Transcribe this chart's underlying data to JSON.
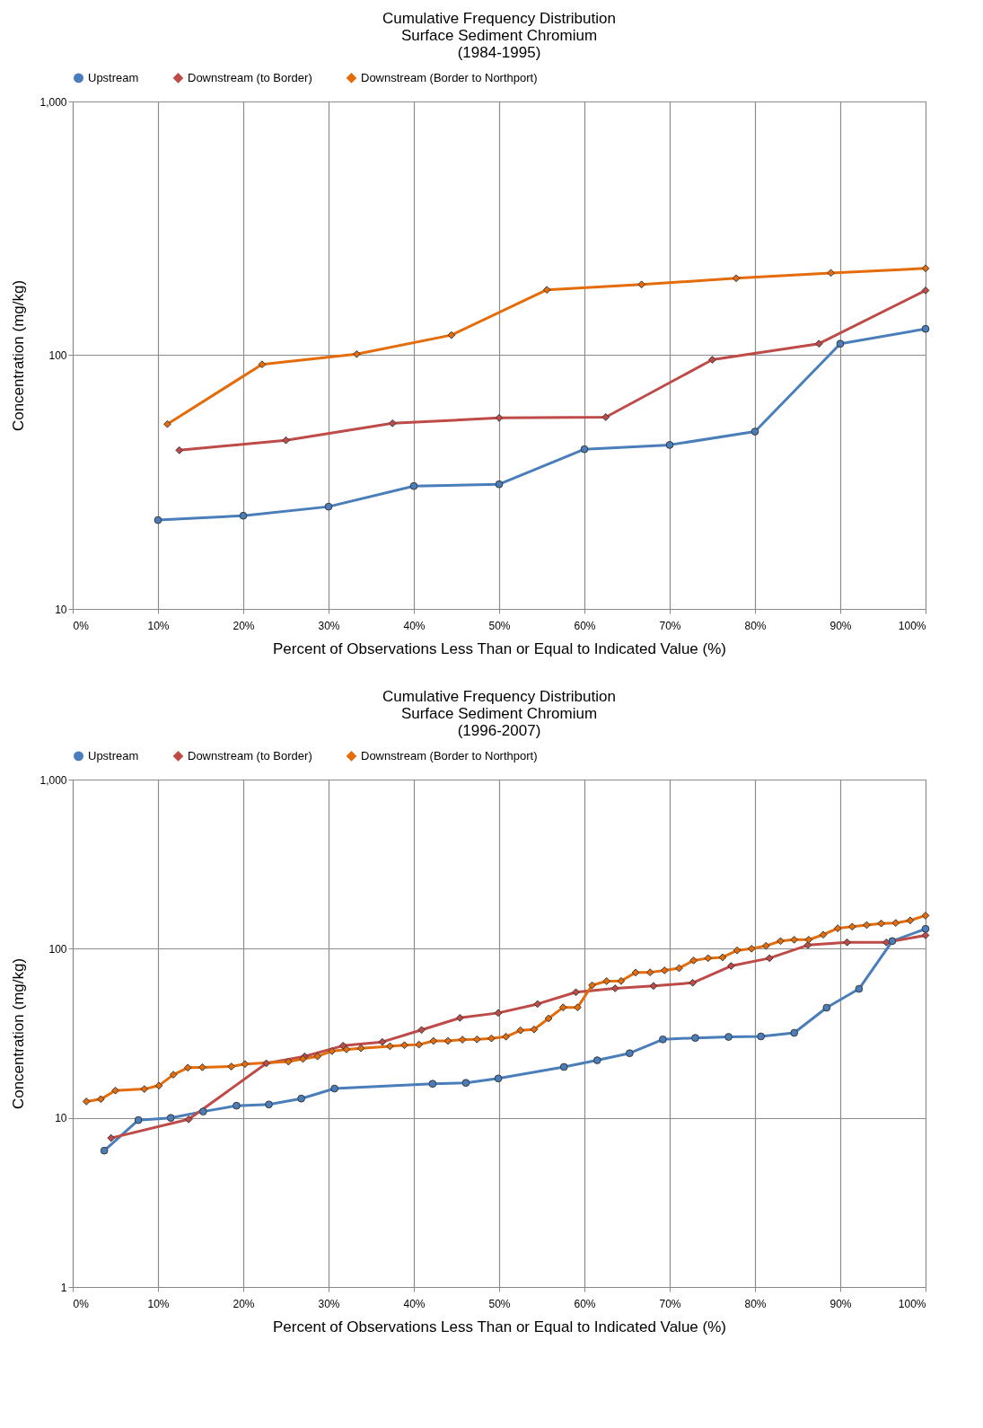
{
  "chart_data": [
    {
      "type": "line",
      "title": "Cumulative Frequency Distribution\nSurface Sediment Chromium\n(1984-1995)",
      "xlabel": "Percent of Observations Less Than or Equal to Indicated Value (%)",
      "ylabel": "Concentration (mg/kg)",
      "log": "y",
      "grid": true,
      "legend": "top",
      "xlim": [
        0,
        100
      ],
      "xticks": [
        {
          "value": 0,
          "label": "0%"
        },
        {
          "value": 10,
          "label": "10%"
        },
        {
          "value": 20,
          "label": "20%"
        },
        {
          "value": 30,
          "label": "30%"
        },
        {
          "value": 40,
          "label": "40%"
        },
        {
          "value": 50,
          "label": "50%"
        },
        {
          "value": 60,
          "label": "60%"
        },
        {
          "value": 70,
          "label": "70%"
        },
        {
          "value": 80,
          "label": "80%"
        },
        {
          "value": 90,
          "label": "90%"
        },
        {
          "value": 100,
          "label": "100%"
        }
      ],
      "ylim": [
        10,
        1000
      ],
      "yticks": [
        10,
        100,
        {
          "value": 1000,
          "label": "1,000"
        }
      ],
      "series": [
        {
          "name": "Upstream",
          "color": "#4a7ebb",
          "marker": "circle",
          "x": [
            10,
            20,
            30,
            40,
            50,
            60,
            70,
            80,
            90,
            100
          ],
          "values": [
            22.4,
            23.3,
            25.3,
            30.5,
            31,
            42.6,
            44.3,
            50,
            111,
            127
          ]
        },
        {
          "name": "Downstream (to Border)",
          "color": "#be4b48",
          "marker": "diamond",
          "x": [
            12.5,
            25,
            37.5,
            50,
            62.5,
            75,
            87.5,
            100
          ],
          "values": [
            42.2,
            46.2,
            53.9,
            56.6,
            57,
            96,
            111,
            180
          ]
        },
        {
          "name": "Downstream (Border to Northport)",
          "color": "#e46c0a",
          "marker": "diamond",
          "x": [
            11.1,
            22.2,
            33.3,
            44.4,
            55.6,
            66.7,
            77.8,
            88.9,
            100
          ],
          "values": [
            53.5,
            92,
            101,
            120,
            181,
            190,
            201,
            211,
            220
          ]
        }
      ]
    },
    {
      "type": "line",
      "title": "Cumulative Frequency Distribution\nSurface Sediment Chromium\n(1996-2007)",
      "xlabel": "Percent of  Observations Less Than or Equal to Indicated Value (%)",
      "ylabel": "Concentration (mg/kg)",
      "log": "y",
      "grid": true,
      "legend": "top",
      "xlim": [
        0,
        100
      ],
      "xticks": [
        {
          "value": 0,
          "label": "0%"
        },
        {
          "value": 10,
          "label": "10%"
        },
        {
          "value": 20,
          "label": "20%"
        },
        {
          "value": 30,
          "label": "30%"
        },
        {
          "value": 40,
          "label": "40%"
        },
        {
          "value": 50,
          "label": "50%"
        },
        {
          "value": 60,
          "label": "60%"
        },
        {
          "value": 70,
          "label": "70%"
        },
        {
          "value": 80,
          "label": "80%"
        },
        {
          "value": 90,
          "label": "90%"
        },
        {
          "value": 100,
          "label": "100%"
        }
      ],
      "ylim": [
        1,
        1000
      ],
      "yticks": [
        1,
        10,
        100,
        {
          "value": 1000,
          "label": "1,000"
        }
      ],
      "series": [
        {
          "name": "Upstream",
          "color": "#4a7ebb",
          "marker": "circle",
          "x": [
            3.7,
            7.7,
            11.5,
            15.3,
            19.2,
            23,
            26.8,
            30.7,
            42.2,
            46.1,
            49.9,
            57.6,
            61.5,
            65.3,
            69.2,
            73,
            76.9,
            80.7,
            84.6,
            88.4,
            92.2,
            96.1,
            100
          ],
          "values": [
            6.4,
            9.7,
            10,
            10.9,
            11.8,
            12,
            13,
            14.9,
            15.9,
            16.1,
            17.1,
            20,
            21.9,
            24.1,
            29.1,
            29.7,
            30.1,
            30.3,
            31.8,
            44.8,
            57.9,
            111,
            131
          ]
        },
        {
          "name": "Downstream (to Border)",
          "color": "#be4b48",
          "marker": "diamond",
          "x": [
            4.5,
            13.6,
            22.7,
            27.2,
            31.7,
            36.3,
            40.9,
            45.4,
            49.9,
            54.5,
            59,
            63.6,
            68.1,
            72.7,
            77.2,
            81.7,
            86.2,
            90.8,
            95.4,
            100
          ],
          "values": [
            7.6,
            9.8,
            21,
            23.1,
            26.7,
            28.1,
            33.1,
            39,
            41.7,
            47.1,
            55.3,
            58.3,
            60.2,
            62.9,
            79.1,
            87.9,
            105,
            109,
            109,
            120
          ]
        },
        {
          "name": "Downstream (Border to Northport)",
          "color": "#e46c0a",
          "marker": "diamond",
          "x": [
            1.6,
            3.3,
            5,
            8.4,
            10.1,
            11.8,
            13.5,
            15.2,
            18.6,
            20.2,
            25.3,
            27,
            28.7,
            30.4,
            32.1,
            33.8,
            37.2,
            38.9,
            40.6,
            42.3,
            44,
            45.7,
            47.4,
            49.1,
            50.8,
            52.5,
            54.1,
            55.8,
            57.5,
            59.2,
            60.9,
            62.6,
            64.3,
            66,
            67.7,
            69.4,
            71.1,
            72.8,
            74.5,
            76.2,
            77.9,
            79.6,
            81.3,
            83,
            84.6,
            86.3,
            88,
            89.7,
            91.4,
            93.1,
            94.8,
            96.5,
            98.2,
            100
          ],
          "values": [
            12.5,
            12.9,
            14.5,
            14.8,
            15.5,
            18,
            19.8,
            19.9,
            20.1,
            20.8,
            21.5,
            22.3,
            23.1,
            24.8,
            25.4,
            25.8,
            26.5,
            26.9,
            27.1,
            28.5,
            28.5,
            29,
            29.1,
            29.5,
            30.2,
            32.9,
            33.3,
            38.7,
            45,
            45,
            60.8,
            64.3,
            64.4,
            72.3,
            72.5,
            74.5,
            76.7,
            85.2,
            87.9,
            88.9,
            97.7,
            100,
            104,
            111,
            113,
            113,
            121,
            132,
            135,
            138,
            141,
            142,
            147,
            157
          ]
        }
      ]
    }
  ]
}
